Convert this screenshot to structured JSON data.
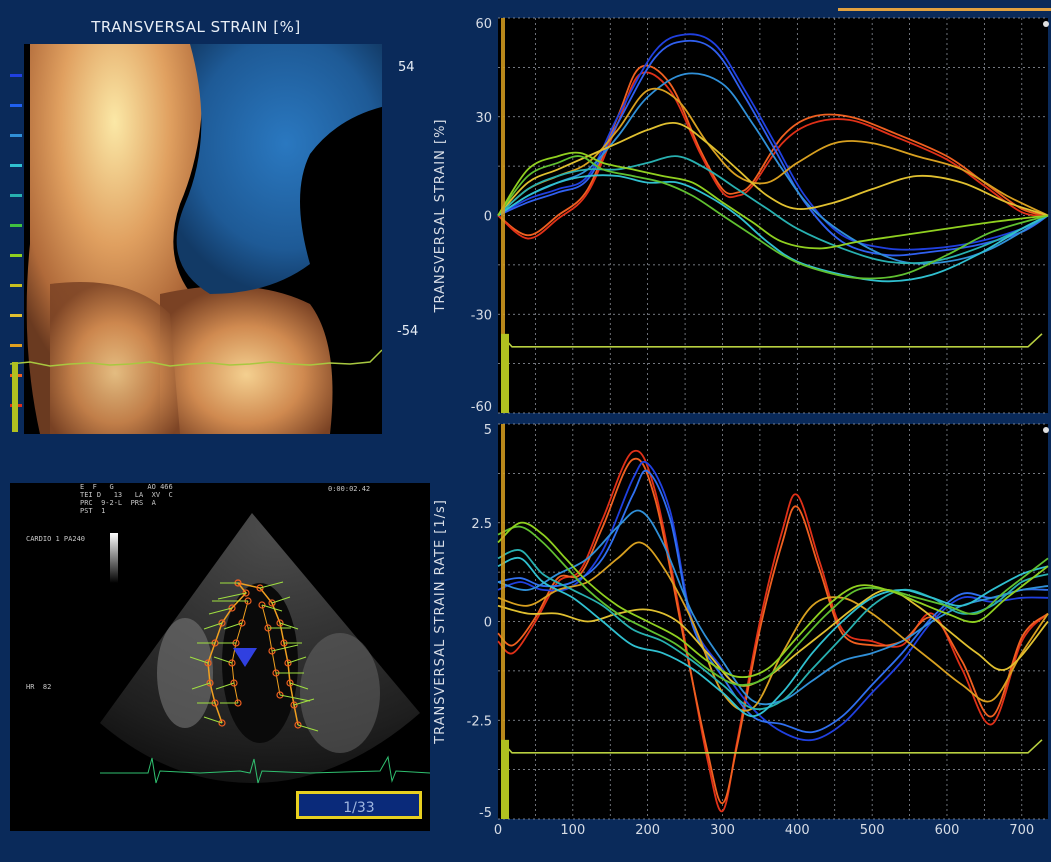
{
  "strain_map": {
    "title": "TRANSVERSAL STRAIN [%]",
    "colorbar_max": "54",
    "colorbar_min": "-54",
    "colors": {
      "positive_high": "#f8e6a0",
      "positive_mid": "#d08a50",
      "negative_mid": "#2a6aa8",
      "negative_high": "#40e0f0"
    }
  },
  "echo_view": {
    "header_lines": [
      "E  F   G        AO 466",
      "TEI D   13   LA  XV  C",
      "PRC  9-2-L  PRS  A",
      "PST  1"
    ],
    "timecode": "0:00:02.42",
    "probe_label": "CARDIO 1 PA240",
    "hr_label": "HR  82",
    "frame_counter": "1/33"
  },
  "chart_data": [
    {
      "type": "line",
      "title": "",
      "ylabel": "TRANSVERSAL STRAIN [%]",
      "xlabel": "",
      "xlim": [
        0,
        735
      ],
      "ylim": [
        -60,
        60
      ],
      "yticks": [
        "60",
        "30",
        "0",
        "-30",
        "-60"
      ],
      "grid": true,
      "series": [
        {
          "color": "#f06020",
          "x": [
            0,
            40,
            80,
            120,
            160,
            190,
            230,
            270,
            300,
            320,
            340,
            380,
            420,
            470,
            530,
            600,
            650,
            700,
            735
          ],
          "y": [
            0,
            -6,
            0,
            8,
            30,
            45,
            40,
            20,
            8,
            7,
            10,
            24,
            30,
            30,
            25,
            18,
            10,
            2,
            0
          ]
        },
        {
          "color": "#e03018",
          "x": [
            0,
            40,
            80,
            120,
            160,
            190,
            230,
            270,
            300,
            320,
            340,
            380,
            420,
            470,
            530,
            600,
            650,
            700,
            735
          ],
          "y": [
            0,
            -7,
            -1,
            7,
            28,
            43,
            38,
            19,
            7,
            6,
            9,
            22,
            28,
            29,
            24,
            17,
            9,
            1,
            0
          ]
        },
        {
          "color": "#2040e0",
          "x": [
            0,
            40,
            80,
            120,
            160,
            210,
            250,
            290,
            330,
            370,
            410,
            460,
            520,
            580,
            640,
            700,
            735
          ],
          "y": [
            0,
            5,
            8,
            12,
            30,
            50,
            55,
            52,
            38,
            22,
            6,
            -6,
            -10,
            -10,
            -8,
            -4,
            0
          ]
        },
        {
          "color": "#3060f0",
          "x": [
            0,
            40,
            80,
            120,
            160,
            210,
            250,
            290,
            330,
            370,
            410,
            460,
            520,
            580,
            640,
            700,
            735
          ],
          "y": [
            0,
            4,
            7,
            11,
            28,
            48,
            53,
            50,
            36,
            20,
            4,
            -8,
            -12,
            -11,
            -9,
            -5,
            0
          ]
        },
        {
          "color": "#3090d8",
          "x": [
            0,
            40,
            80,
            120,
            160,
            200,
            250,
            300,
            340,
            380,
            420,
            480,
            540,
            600,
            660,
            735
          ],
          "y": [
            0,
            6,
            10,
            14,
            24,
            36,
            43,
            40,
            28,
            14,
            2,
            -8,
            -14,
            -14,
            -10,
            0
          ]
        },
        {
          "color": "#d8a020",
          "x": [
            0,
            40,
            80,
            120,
            160,
            200,
            240,
            280,
            320,
            360,
            400,
            450,
            500,
            560,
            620,
            680,
            735
          ],
          "y": [
            0,
            8,
            12,
            16,
            26,
            38,
            35,
            22,
            12,
            10,
            16,
            22,
            22,
            18,
            14,
            6,
            0
          ]
        },
        {
          "color": "#e0c030",
          "x": [
            0,
            40,
            80,
            120,
            160,
            200,
            240,
            280,
            320,
            360,
            400,
            450,
            500,
            560,
            620,
            680,
            735
          ],
          "y": [
            0,
            10,
            14,
            18,
            22,
            26,
            28,
            22,
            14,
            6,
            2,
            4,
            8,
            12,
            10,
            4,
            0
          ]
        },
        {
          "color": "#28b0b0",
          "x": [
            0,
            40,
            80,
            120,
            160,
            200,
            240,
            280,
            320,
            360,
            400,
            460,
            520,
            580,
            640,
            700,
            735
          ],
          "y": [
            0,
            8,
            12,
            14,
            14,
            16,
            18,
            14,
            8,
            2,
            -4,
            -10,
            -14,
            -14,
            -10,
            -4,
            0
          ]
        },
        {
          "color": "#30c0d0",
          "x": [
            0,
            40,
            80,
            120,
            160,
            200,
            240,
            280,
            320,
            360,
            400,
            460,
            520,
            580,
            640,
            700,
            735
          ],
          "y": [
            0,
            6,
            10,
            12,
            12,
            10,
            10,
            6,
            0,
            -8,
            -14,
            -18,
            -20,
            -18,
            -12,
            -4,
            0
          ]
        },
        {
          "color": "#60c030",
          "x": [
            0,
            40,
            80,
            110,
            140,
            180,
            220,
            260,
            300,
            340,
            380,
            420,
            480,
            540,
            600,
            660,
            735
          ],
          "y": [
            0,
            12,
            16,
            18,
            14,
            12,
            10,
            6,
            0,
            -6,
            -12,
            -16,
            -19,
            -18,
            -12,
            -5,
            0
          ]
        },
        {
          "color": "#90d020",
          "x": [
            0,
            40,
            80,
            110,
            140,
            180,
            220,
            260,
            300,
            340,
            380,
            430,
            480,
            540,
            600,
            660,
            735
          ],
          "y": [
            0,
            14,
            18,
            19,
            16,
            14,
            12,
            10,
            4,
            -2,
            -8,
            -10,
            -8,
            -6,
            -4,
            -2,
            0
          ]
        }
      ]
    },
    {
      "type": "line",
      "title": "",
      "ylabel": "TRANSVERSAL STRAIN RATE [1/s]",
      "xlabel": "",
      "xlim": [
        0,
        735
      ],
      "ylim": [
        -5,
        5
      ],
      "yticks": [
        "5",
        "2.5",
        "0",
        "-2.5",
        "-5"
      ],
      "xticks": [
        "0",
        "100",
        "200",
        "300",
        "400",
        "500",
        "600",
        "700"
      ],
      "grid": true,
      "series": [
        {
          "color": "#e03018",
          "x": [
            0,
            20,
            50,
            80,
            110,
            140,
            180,
            210,
            250,
            280,
            300,
            320,
            350,
            380,
            400,
            430,
            460,
            500,
            540,
            580,
            620,
            660,
            700,
            735
          ],
          "y": [
            -0.5,
            -0.8,
            0,
            1,
            1.3,
            2.6,
            4.3,
            3.3,
            -0.5,
            -3.5,
            -4.8,
            -3,
            0,
            2.3,
            3.2,
            1.5,
            -0.2,
            -0.5,
            -0.6,
            0.2,
            -1.2,
            -2.6,
            -0.5,
            0.2
          ]
        },
        {
          "color": "#f06020",
          "x": [
            0,
            20,
            50,
            80,
            110,
            140,
            180,
            210,
            250,
            280,
            300,
            320,
            350,
            380,
            400,
            430,
            460,
            500,
            540,
            580,
            620,
            660,
            700,
            735
          ],
          "y": [
            -0.3,
            -0.6,
            0.1,
            1.1,
            1.2,
            2.4,
            4.1,
            3.1,
            -0.6,
            -3.3,
            -4.6,
            -3.1,
            -0.2,
            2,
            2.9,
            1.3,
            -0.3,
            -0.6,
            -0.5,
            0.1,
            -1,
            -2.4,
            -0.4,
            0.2
          ]
        },
        {
          "color": "#2040e0",
          "x": [
            0,
            30,
            60,
            100,
            140,
            180,
            200,
            230,
            260,
            300,
            340,
            380,
            420,
            460,
            500,
            540,
            580,
            620,
            660,
            700,
            735
          ],
          "y": [
            0.8,
            1,
            0.8,
            0.9,
            1.8,
            3.6,
            4,
            2.8,
            0,
            -1.2,
            -2.2,
            -2.8,
            -3,
            -2.6,
            -1.8,
            -1,
            0,
            0.6,
            0.5,
            0.6,
            0.6
          ]
        },
        {
          "color": "#3070f0",
          "x": [
            0,
            30,
            60,
            100,
            140,
            180,
            200,
            230,
            260,
            300,
            340,
            380,
            420,
            460,
            500,
            540,
            580,
            620,
            660,
            700,
            735
          ],
          "y": [
            1,
            1.1,
            0.9,
            1,
            1.6,
            3.2,
            3.8,
            2.6,
            -0.1,
            -1.4,
            -2.4,
            -2.6,
            -2.8,
            -2.4,
            -1.6,
            -0.8,
            0.1,
            0.7,
            0.6,
            0.8,
            0.8
          ]
        },
        {
          "color": "#3090d8",
          "x": [
            0,
            40,
            80,
            120,
            160,
            190,
            220,
            260,
            300,
            340,
            380,
            420,
            460,
            500,
            540,
            580,
            620,
            660,
            700,
            735
          ],
          "y": [
            1,
            0.8,
            1.2,
            1.6,
            2.4,
            2.8,
            2,
            0.2,
            -1,
            -2,
            -2,
            -1.5,
            -1,
            -0.8,
            -0.5,
            0,
            0.4,
            0.6,
            0.8,
            0.9
          ]
        },
        {
          "color": "#d8a020",
          "x": [
            0,
            40,
            80,
            120,
            160,
            190,
            220,
            260,
            300,
            340,
            380,
            420,
            460,
            500,
            540,
            580,
            620,
            660,
            700,
            735
          ],
          "y": [
            0.6,
            0.4,
            0.8,
            1,
            1.6,
            2,
            1.4,
            0,
            -1.8,
            -2.2,
            -0.8,
            0.4,
            0.6,
            0.2,
            -0.4,
            -1,
            -1.6,
            -2,
            -0.8,
            0.2
          ]
        },
        {
          "color": "#e0c030",
          "x": [
            0,
            40,
            80,
            120,
            160,
            200,
            240,
            280,
            320,
            360,
            400,
            440,
            480,
            520,
            560,
            600,
            640,
            680,
            735
          ],
          "y": [
            0.4,
            0.2,
            0.2,
            0,
            0.2,
            0.3,
            0,
            -0.8,
            -1.6,
            -1.4,
            -0.8,
            -0.2,
            0.4,
            0.8,
            0.4,
            -0.2,
            -0.8,
            -1.2,
            0
          ]
        },
        {
          "color": "#28b0b0",
          "x": [
            0,
            30,
            60,
            100,
            140,
            180,
            220,
            260,
            300,
            340,
            380,
            420,
            460,
            500,
            540,
            580,
            620,
            660,
            700,
            735
          ],
          "y": [
            1.6,
            1.8,
            1.2,
            0.8,
            0.4,
            -0.2,
            -0.5,
            -1,
            -1.6,
            -2.2,
            -2,
            -1.2,
            -0.4,
            0.4,
            0.8,
            0.6,
            0.2,
            0.4,
            1,
            1.2
          ]
        },
        {
          "color": "#30c0d0",
          "x": [
            0,
            30,
            60,
            100,
            140,
            180,
            220,
            260,
            300,
            340,
            380,
            420,
            460,
            500,
            540,
            580,
            620,
            660,
            700,
            735
          ],
          "y": [
            1.4,
            1.6,
            1,
            0.6,
            0,
            -0.6,
            -0.8,
            -1.2,
            -1.8,
            -2.4,
            -1.8,
            -0.8,
            0,
            0.6,
            0.8,
            0.6,
            0.4,
            0.8,
            1.2,
            1.4
          ]
        },
        {
          "color": "#60c030",
          "x": [
            0,
            30,
            60,
            90,
            120,
            160,
            200,
            240,
            280,
            320,
            360,
            400,
            440,
            480,
            520,
            560,
            600,
            640,
            680,
            735
          ],
          "y": [
            2.2,
            2.4,
            2,
            1.4,
            0.8,
            0.2,
            -0.2,
            -0.6,
            -1.2,
            -1.6,
            -1.4,
            -0.6,
            0.2,
            0.8,
            0.8,
            0.6,
            0.4,
            0.2,
            0.8,
            1.6
          ]
        },
        {
          "color": "#90d020",
          "x": [
            0,
            30,
            60,
            90,
            120,
            160,
            200,
            240,
            280,
            320,
            360,
            400,
            440,
            480,
            520,
            560,
            600,
            640,
            680,
            735
          ],
          "y": [
            2,
            2.5,
            2.2,
            1.6,
            1,
            0.4,
            0,
            -0.4,
            -1,
            -1.4,
            -1.2,
            -0.4,
            0.4,
            0.9,
            0.8,
            0.5,
            0.2,
            0,
            0.6,
            1.4
          ]
        }
      ]
    }
  ]
}
